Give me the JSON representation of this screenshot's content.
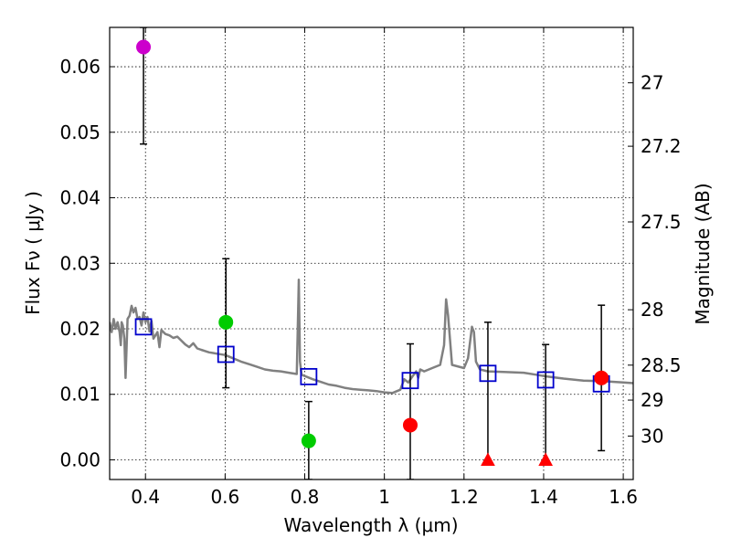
{
  "chart_data": {
    "type": "scatter",
    "title": "",
    "xlabel": "Wavelength  λ (μm)",
    "ylabel": "Flux  Fν  ( μJy )",
    "y2label": "Magnitude (AB)",
    "xlim": [
      0.31,
      1.625
    ],
    "ylim": [
      -0.003,
      0.066
    ],
    "grid": true,
    "x_ticks": [
      {
        "value": 0.4,
        "label": "0.4"
      },
      {
        "value": 0.6,
        "label": "0.6"
      },
      {
        "value": 0.8,
        "label": "0.8"
      },
      {
        "value": 1.0,
        "label": "1"
      },
      {
        "value": 1.2,
        "label": "1.2"
      },
      {
        "value": 1.4,
        "label": "1.4"
      },
      {
        "value": 1.6,
        "label": "1.6"
      }
    ],
    "y_ticks": [
      {
        "value": 0.0,
        "label": "0.00"
      },
      {
        "value": 0.01,
        "label": "0.01"
      },
      {
        "value": 0.02,
        "label": "0.02"
      },
      {
        "value": 0.03,
        "label": "0.03"
      },
      {
        "value": 0.04,
        "label": "0.04"
      },
      {
        "value": 0.05,
        "label": "0.05"
      },
      {
        "value": 0.06,
        "label": "0.06"
      }
    ],
    "y2_ticks": [
      {
        "value": 27,
        "label": "27"
      },
      {
        "value": 27.2,
        "label": "27.2"
      },
      {
        "value": 27.5,
        "label": "27.5"
      },
      {
        "value": 28,
        "label": "28"
      },
      {
        "value": 28.5,
        "label": "28.5"
      },
      {
        "value": 29,
        "label": "29"
      },
      {
        "value": 30,
        "label": "30"
      }
    ],
    "series": [
      {
        "name": "model_spectrum",
        "kind": "line",
        "color": "#808080",
        "x": [
          0.31,
          0.315,
          0.32,
          0.325,
          0.33,
          0.335,
          0.338,
          0.34,
          0.343,
          0.347,
          0.35,
          0.355,
          0.36,
          0.365,
          0.37,
          0.375,
          0.38,
          0.385,
          0.39,
          0.395,
          0.4,
          0.405,
          0.41,
          0.415,
          0.42,
          0.43,
          0.435,
          0.44,
          0.45,
          0.46,
          0.47,
          0.48,
          0.49,
          0.5,
          0.51,
          0.52,
          0.53,
          0.54,
          0.55,
          0.56,
          0.57,
          0.58,
          0.6,
          0.62,
          0.64,
          0.66,
          0.68,
          0.7,
          0.72,
          0.74,
          0.76,
          0.78,
          0.785,
          0.788,
          0.792,
          0.8,
          0.82,
          0.84,
          0.86,
          0.88,
          0.9,
          0.92,
          0.94,
          0.96,
          0.98,
          1.0,
          1.02,
          1.04,
          1.05,
          1.06,
          1.07,
          1.08,
          1.085,
          1.09,
          1.1,
          1.12,
          1.14,
          1.15,
          1.155,
          1.16,
          1.17,
          1.2,
          1.21,
          1.22,
          1.225,
          1.23,
          1.24,
          1.26,
          1.3,
          1.35,
          1.38,
          1.4,
          1.45,
          1.5,
          1.55,
          1.6,
          1.625
        ],
        "y": [
          0.021,
          0.0195,
          0.0215,
          0.02,
          0.021,
          0.0195,
          0.0175,
          0.021,
          0.0205,
          0.0185,
          0.0125,
          0.0215,
          0.022,
          0.0235,
          0.0225,
          0.0232,
          0.0215,
          0.0218,
          0.0205,
          0.0225,
          0.021,
          0.0218,
          0.0196,
          0.0212,
          0.0185,
          0.0195,
          0.0172,
          0.0198,
          0.0192,
          0.019,
          0.0186,
          0.0188,
          0.0182,
          0.0176,
          0.0172,
          0.0178,
          0.017,
          0.0168,
          0.0166,
          0.0164,
          0.0163,
          0.0162,
          0.016,
          0.0155,
          0.015,
          0.0146,
          0.0142,
          0.0138,
          0.0136,
          0.0135,
          0.0133,
          0.0131,
          0.0275,
          0.015,
          0.013,
          0.0128,
          0.0123,
          0.0119,
          0.0115,
          0.0113,
          0.011,
          0.0108,
          0.0107,
          0.0106,
          0.0105,
          0.0103,
          0.0102,
          0.0107,
          0.0123,
          0.0118,
          0.0127,
          0.0135,
          0.0125,
          0.0138,
          0.0135,
          0.014,
          0.0145,
          0.0175,
          0.0245,
          0.022,
          0.0145,
          0.014,
          0.0155,
          0.0203,
          0.0195,
          0.015,
          0.0138,
          0.0135,
          0.0134,
          0.0133,
          0.013,
          0.0128,
          0.0124,
          0.0121,
          0.012,
          0.0118,
          0.0117
        ]
      },
      {
        "name": "model_photometry",
        "kind": "open_square",
        "color": "#0000cc",
        "x": [
          0.395,
          0.602,
          0.81,
          1.065,
          1.26,
          1.405,
          1.545
        ],
        "y": [
          0.0203,
          0.0161,
          0.0127,
          0.0121,
          0.0132,
          0.0122,
          0.0116
        ]
      }
    ],
    "observations": [
      {
        "x": 0.395,
        "y": 0.063,
        "err_low": 0.0482,
        "err_high": 0.066,
        "marker": "circle",
        "color": "#cc00cc"
      },
      {
        "x": 0.602,
        "y": 0.021,
        "err_low": 0.011,
        "err_high": 0.0307,
        "marker": "circle",
        "color": "#00cc00"
      },
      {
        "x": 0.81,
        "y": 0.0029,
        "err_low": -0.003,
        "err_high": 0.0089,
        "marker": "circle",
        "color": "#00cc00"
      },
      {
        "x": 1.065,
        "y": 0.0053,
        "err_low": -0.003,
        "err_high": 0.0177,
        "marker": "circle",
        "color": "#ff0000"
      },
      {
        "x": 1.26,
        "y": 0.0,
        "err_low": 0.0,
        "err_high": 0.021,
        "marker": "triangle",
        "color": "#ff0000"
      },
      {
        "x": 1.405,
        "y": 0.0,
        "err_low": 0.0,
        "err_high": 0.0176,
        "marker": "triangle",
        "color": "#ff0000"
      },
      {
        "x": 1.545,
        "y": 0.0125,
        "err_low": 0.0014,
        "err_high": 0.0236,
        "marker": "circle",
        "color": "#ff0000"
      }
    ]
  }
}
